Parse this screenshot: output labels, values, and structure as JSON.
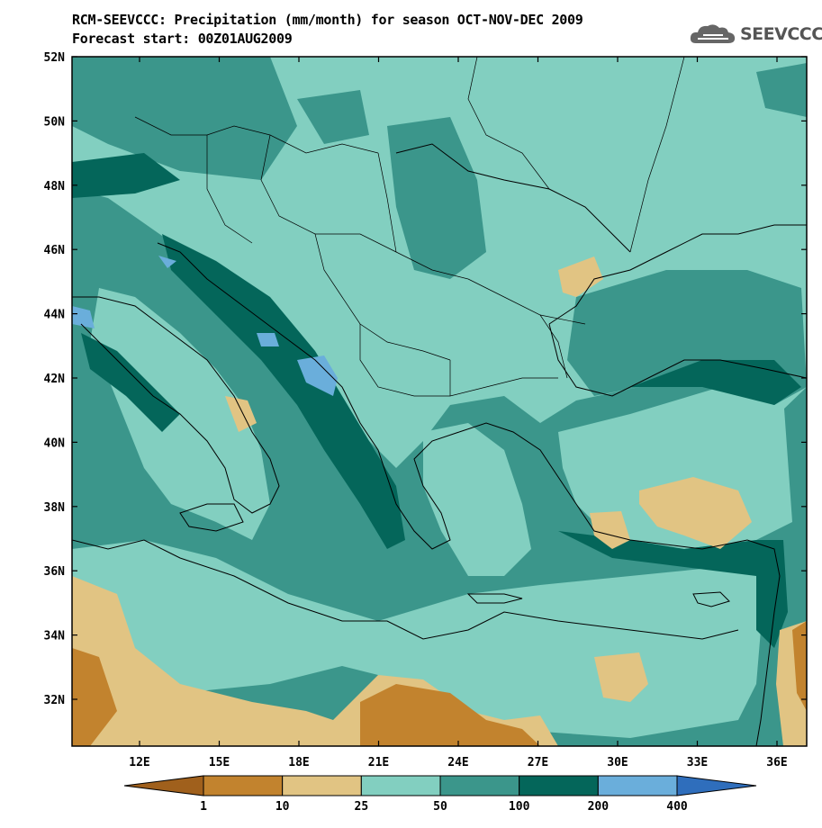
{
  "header": {
    "title_line1": "RCM-SEEVCCC: Precipitation (mm/month) for season OCT-NOV-DEC 2009",
    "title_line2": "Forecast start: 00Z01AUG2009"
  },
  "logo": {
    "text": "SEEVCCC",
    "icon": "cloud-logo-icon"
  },
  "map": {
    "lat_labels": [
      "52N",
      "50N",
      "48N",
      "46N",
      "44N",
      "42N",
      "40N",
      "38N",
      "36N",
      "34N",
      "32N"
    ],
    "lon_labels": [
      "12E",
      "15E",
      "18E",
      "21E",
      "24E",
      "27E",
      "30E",
      "33E",
      "36E"
    ],
    "colors": {
      "c0": "#a0601c",
      "c1": "#c2832e",
      "c2": "#e1c483",
      "c3": "#82cfc0",
      "c4": "#3b968b",
      "c5": "#04665a",
      "c6": "#6aaedb",
      "c7": "#2f6ebc"
    }
  },
  "colorbar": {
    "levels": [
      "1",
      "10",
      "25",
      "50",
      "100",
      "200",
      "400"
    ],
    "colors": [
      "#a0601c",
      "#c2832e",
      "#e1c483",
      "#82cfc0",
      "#3b968b",
      "#04665a",
      "#6aaedb",
      "#2f6ebc"
    ]
  }
}
